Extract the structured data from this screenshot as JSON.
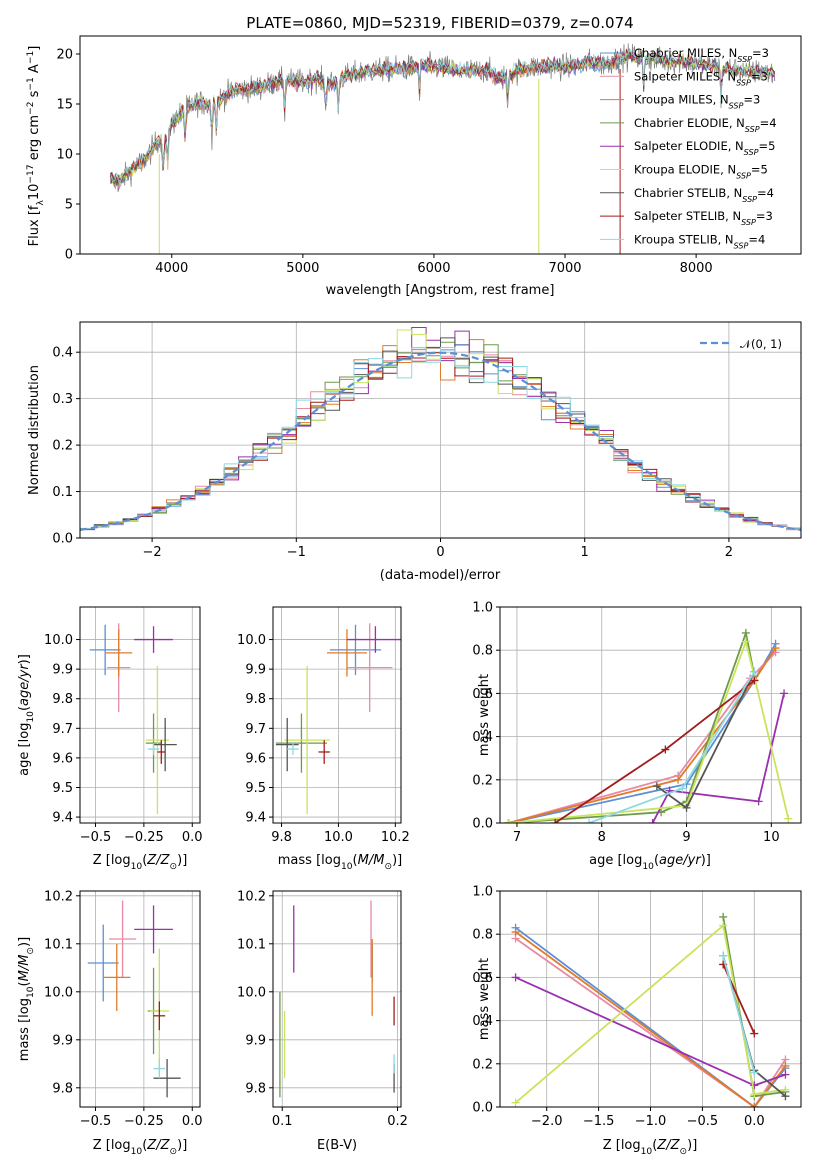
{
  "figure": {
    "title": "PLATE=0860, MJD=52319, FIBERID=0379, z=0.074"
  },
  "colors": {
    "Chabrier MILES": "#5b8fd6",
    "Salpeter MILES": "#e88aa3",
    "Kroupa MILES": "#e07b28",
    "Chabrier ELODIE": "#6f9a4c",
    "Salpeter ELODIE": "#9a2fb0",
    "Kroupa ELODIE": "#c7e45a",
    "Chabrier STELIB": "#555555",
    "Salpeter STELIB": "#a31c1c",
    "Kroupa STELIB": "#8ed8e2",
    "gauss": "#5b8fd6"
  },
  "chart_data": [
    {
      "id": "spectrum",
      "type": "line",
      "title": "PLATE=0860, MJD=52319, FIBERID=0379, z=0.074",
      "xlabel": "wavelength [Angstrom, rest frame]",
      "ylabel": "Flux [f_λ 10^-17 erg cm^-2 s^-1 A^-1]",
      "xlim": [
        3300,
        8800
      ],
      "ylim": [
        0,
        21.8
      ],
      "xticks": [
        4000,
        5000,
        6000,
        7000,
        8000
      ],
      "yticks": [
        0,
        5,
        10,
        15,
        20
      ],
      "grid": false,
      "legend_placement": "top-right",
      "continuum_points": [
        [
          3530,
          7.5
        ],
        [
          3600,
          7.2
        ],
        [
          3700,
          8.5
        ],
        [
          3800,
          9.5
        ],
        [
          3900,
          11.5
        ],
        [
          3950,
          11.0
        ],
        [
          4000,
          13.0
        ],
        [
          4100,
          14.5
        ],
        [
          4200,
          15.2
        ],
        [
          4300,
          14.8
        ],
        [
          4400,
          15.8
        ],
        [
          4500,
          16.5
        ],
        [
          4600,
          16.5
        ],
        [
          4700,
          16.8
        ],
        [
          4800,
          17.2
        ],
        [
          4900,
          17.3
        ],
        [
          5000,
          17.2
        ],
        [
          5100,
          17.5
        ],
        [
          5200,
          17.0
        ],
        [
          5300,
          17.6
        ],
        [
          5400,
          18.0
        ],
        [
          5500,
          18.3
        ],
        [
          5600,
          18.4
        ],
        [
          5700,
          18.5
        ],
        [
          5800,
          18.6
        ],
        [
          5900,
          18.9
        ],
        [
          6000,
          18.7
        ],
        [
          6100,
          18.6
        ],
        [
          6200,
          18.2
        ],
        [
          6300,
          18.3
        ],
        [
          6400,
          18.4
        ],
        [
          6500,
          17.5
        ],
        [
          6600,
          18.1
        ],
        [
          6700,
          18.6
        ],
        [
          6800,
          18.7
        ],
        [
          6900,
          18.8
        ],
        [
          7000,
          18.7
        ],
        [
          7100,
          18.9
        ],
        [
          7200,
          19.2
        ],
        [
          7300,
          19.0
        ],
        [
          7400,
          19.5
        ],
        [
          7500,
          19.8
        ],
        [
          7600,
          19.6
        ],
        [
          7700,
          19.4
        ],
        [
          7800,
          19.2
        ],
        [
          7900,
          19.3
        ],
        [
          8000,
          19.0
        ],
        [
          8100,
          18.8
        ],
        [
          8200,
          18.6
        ],
        [
          8300,
          18.4
        ],
        [
          8400,
          18.2
        ],
        [
          8500,
          18.2
        ],
        [
          8600,
          18.0
        ]
      ],
      "series": [
        {
          "name": "Chabrier MILES",
          "legend": [
            "Chabrier MILES, N",
            "SSP",
            "=3"
          ]
        },
        {
          "name": "Salpeter MILES",
          "legend": [
            "Salpeter MILES, N",
            "SSP",
            "=3"
          ]
        },
        {
          "name": "Kroupa MILES",
          "legend": [
            "Kroupa MILES, N",
            "SSP",
            "=3"
          ]
        },
        {
          "name": "Chabrier ELODIE",
          "legend": [
            "Chabrier ELODIE, N",
            "SSP",
            "=4"
          ]
        },
        {
          "name": "Salpeter ELODIE",
          "legend": [
            "Salpeter ELODIE, N",
            "SSP",
            "=5"
          ]
        },
        {
          "name": "Kroupa ELODIE",
          "legend": [
            "Kroupa ELODIE, N",
            "SSP",
            "=5"
          ]
        },
        {
          "name": "Chabrier STELIB",
          "legend": [
            "Chabrier STELIB, N",
            "SSP",
            "=4"
          ]
        },
        {
          "name": "Salpeter STELIB",
          "legend": [
            "Salpeter STELIB, N",
            "SSP",
            "=3"
          ]
        },
        {
          "name": "Kroupa STELIB",
          "legend": [
            "Kroupa STELIB, N",
            "SSP",
            "=4"
          ]
        }
      ]
    },
    {
      "id": "residuals",
      "type": "line",
      "xlabel": "(data-model)/error",
      "ylabel": "Normed distribution",
      "xlim": [
        -2.5,
        2.5
      ],
      "ylim": [
        0,
        0.465
      ],
      "xticks": [
        -2,
        -1,
        0,
        1,
        2
      ],
      "yticks": [
        0.0,
        0.1,
        0.2,
        0.3,
        0.4
      ],
      "grid": true,
      "legend_placement": "top-right",
      "gauss_label": "𝒩(0, 1)",
      "bin_width": 0.1,
      "bin_start": -2.5
    },
    {
      "id": "age-z",
      "type": "scatter",
      "xlabel": "Z [log10(Z/Z⊙)]",
      "ylabel": "age [log10(age/yr)]",
      "xlim": [
        -0.58,
        0.04
      ],
      "ylim": [
        9.38,
        10.11
      ],
      "xticks": [
        -0.5,
        -0.25,
        0.0
      ],
      "xticklabels": [
        "−0.5",
        "−0.25",
        "0.0"
      ],
      "yticks": [
        9.4,
        9.5,
        9.6,
        9.7,
        9.8,
        9.9,
        10.0
      ],
      "grid": true,
      "points": [
        {
          "name": "Chabrier MILES",
          "x": -0.45,
          "xerr": 0.08,
          "y": 9.965,
          "yerr": 0.085
        },
        {
          "name": "Salpeter MILES",
          "x": -0.38,
          "xerr": 0.06,
          "y": 9.905,
          "yerr": 0.15
        },
        {
          "name": "Kroupa MILES",
          "x": -0.38,
          "xerr": 0.07,
          "y": 9.955,
          "yerr": 0.08
        },
        {
          "name": "Chabrier ELODIE",
          "x": -0.2,
          "xerr": 0.04,
          "y": 9.65,
          "yerr": 0.1
        },
        {
          "name": "Salpeter ELODIE",
          "x": -0.2,
          "xerr": 0.1,
          "y": 10.0,
          "yerr": 0.045
        },
        {
          "name": "Kroupa ELODIE",
          "x": -0.18,
          "xerr": 0.06,
          "y": 9.66,
          "yerr": 0.25
        },
        {
          "name": "Chabrier STELIB",
          "x": -0.14,
          "xerr": 0.06,
          "y": 9.645,
          "yerr": 0.09
        },
        {
          "name": "Salpeter STELIB",
          "x": -0.16,
          "xerr": 0.02,
          "y": 9.62,
          "yerr": 0.04
        },
        {
          "name": "Kroupa STELIB",
          "x": -0.2,
          "xerr": 0.03,
          "y": 9.63,
          "yerr": 0.02
        }
      ]
    },
    {
      "id": "age-mass",
      "type": "scatter",
      "xlabel": "mass [log10(M/M⊙)]",
      "ylabel": "",
      "xlim": [
        9.77,
        10.22
      ],
      "ylim": [
        9.38,
        10.11
      ],
      "xticks": [
        9.8,
        10.0,
        10.2
      ],
      "yticks": [
        9.4,
        9.5,
        9.6,
        9.7,
        9.8,
        9.9,
        10.0
      ],
      "grid": true,
      "points": [
        {
          "name": "Chabrier MILES",
          "x": 10.06,
          "xerr": 0.09,
          "y": 9.965,
          "yerr": 0.085
        },
        {
          "name": "Salpeter MILES",
          "x": 10.11,
          "xerr": 0.08,
          "y": 9.905,
          "yerr": 0.15
        },
        {
          "name": "Kroupa MILES",
          "x": 10.03,
          "xerr": 0.07,
          "y": 9.955,
          "yerr": 0.08
        },
        {
          "name": "Chabrier ELODIE",
          "x": 9.87,
          "xerr": 0.09,
          "y": 9.65,
          "yerr": 0.1
        },
        {
          "name": "Salpeter ELODIE",
          "x": 10.13,
          "xerr": 0.1,
          "y": 10.0,
          "yerr": 0.045
        },
        {
          "name": "Kroupa ELODIE",
          "x": 9.89,
          "xerr": 0.08,
          "y": 9.66,
          "yerr": 0.25
        },
        {
          "name": "Chabrier STELIB",
          "x": 9.82,
          "xerr": 0.04,
          "y": 9.645,
          "yerr": 0.09
        },
        {
          "name": "Salpeter STELIB",
          "x": 9.95,
          "xerr": 0.02,
          "y": 9.62,
          "yerr": 0.04
        },
        {
          "name": "Kroupa STELIB",
          "x": 9.84,
          "xerr": 0.02,
          "y": 9.63,
          "yerr": 0.02
        }
      ]
    },
    {
      "id": "weight-age",
      "type": "line",
      "xlabel": "age [log10(age/yr)]",
      "ylabel": "mass weight",
      "xlim": [
        6.8,
        10.35
      ],
      "ylim": [
        0,
        1
      ],
      "xticks": [
        7,
        8,
        9,
        10
      ],
      "yticks": [
        0.0,
        0.2,
        0.4,
        0.6,
        0.8,
        1.0
      ],
      "grid": true,
      "series": [
        {
          "name": "Chabrier MILES",
          "x": [
            6.9,
            9.0,
            9.8,
            10.05
          ],
          "y": [
            0.0,
            0.18,
            0.66,
            0.83
          ]
        },
        {
          "name": "Salpeter MILES",
          "x": [
            6.9,
            8.9,
            9.75,
            10.05
          ],
          "y": [
            0.0,
            0.22,
            0.67,
            0.79
          ]
        },
        {
          "name": "Kroupa MILES",
          "x": [
            6.9,
            8.9,
            9.8,
            10.05
          ],
          "y": [
            0.0,
            0.2,
            0.66,
            0.81
          ]
        },
        {
          "name": "Chabrier ELODIE",
          "x": [
            6.9,
            8.7,
            9.0,
            9.7,
            9.8
          ],
          "y": [
            0.0,
            0.05,
            0.1,
            0.88,
            0.68
          ]
        },
        {
          "name": "Salpeter ELODIE",
          "x": [
            8.6,
            8.8,
            9.85,
            10.15
          ],
          "y": [
            0.0,
            0.15,
            0.1,
            0.6
          ]
        },
        {
          "name": "Kroupa ELODIE",
          "x": [
            6.9,
            9.0,
            9.7,
            10.2
          ],
          "y": [
            0.0,
            0.08,
            0.84,
            0.02
          ]
        },
        {
          "name": "Chabrier STELIB",
          "x": [
            8.65,
            9.0,
            9.8
          ],
          "y": [
            0.17,
            0.07,
            0.7
          ]
        },
        {
          "name": "Salpeter STELIB",
          "x": [
            7.45,
            8.75,
            9.8
          ],
          "y": [
            0.0,
            0.34,
            0.66
          ]
        },
        {
          "name": "Kroupa STELIB",
          "x": [
            7.85,
            8.95,
            9.8
          ],
          "y": [
            0.0,
            0.16,
            0.7
          ]
        }
      ]
    },
    {
      "id": "mass-z",
      "type": "scatter",
      "xlabel": "Z [log10(Z/Z⊙)]",
      "ylabel": "mass [log10(M/M⊙)]",
      "xlim": [
        -0.58,
        0.04
      ],
      "ylim": [
        9.76,
        10.21
      ],
      "xticks": [
        -0.5,
        -0.25,
        0.0
      ],
      "xticklabels": [
        "−0.5",
        "−0.25",
        "0.0"
      ],
      "yticks": [
        9.8,
        9.9,
        10.0,
        10.1,
        10.2
      ],
      "grid": true,
      "points": [
        {
          "name": "Chabrier MILES",
          "x": -0.46,
          "xerr": 0.08,
          "y": 10.06,
          "yerr": 0.08
        },
        {
          "name": "Salpeter MILES",
          "x": -0.36,
          "xerr": 0.07,
          "y": 10.11,
          "yerr": 0.08
        },
        {
          "name": "Kroupa MILES",
          "x": -0.39,
          "xerr": 0.07,
          "y": 10.03,
          "yerr": 0.07
        },
        {
          "name": "Chabrier ELODIE",
          "x": -0.2,
          "xerr": 0.03,
          "y": 9.96,
          "yerr": 0.09
        },
        {
          "name": "Salpeter ELODIE",
          "x": -0.2,
          "xerr": 0.1,
          "y": 10.13,
          "yerr": 0.05
        },
        {
          "name": "Kroupa ELODIE",
          "x": -0.17,
          "xerr": 0.05,
          "y": 9.96,
          "yerr": 0.13
        },
        {
          "name": "Chabrier STELIB",
          "x": -0.13,
          "xerr": 0.07,
          "y": 9.82,
          "yerr": 0.04
        },
        {
          "name": "Salpeter STELIB",
          "x": -0.17,
          "xerr": 0.03,
          "y": 9.95,
          "yerr": 0.03
        },
        {
          "name": "Kroupa STELIB",
          "x": -0.17,
          "xerr": 0.03,
          "y": 9.84,
          "yerr": 0.02
        }
      ]
    },
    {
      "id": "mass-ebv",
      "type": "scatter",
      "xlabel": "E(B-V)",
      "ylabel": "",
      "xlim": [
        0.092,
        0.203
      ],
      "ylim": [
        9.76,
        10.21
      ],
      "xticks": [
        0.1,
        0.2
      ],
      "yticks": [
        9.8,
        9.9,
        10.0,
        10.1,
        10.2
      ],
      "grid": true,
      "points": [
        {
          "name": "Chabrier MILES",
          "x": 0.178,
          "xerr": 0.0,
          "y": 10.06,
          "yerr": 0.04
        },
        {
          "name": "Salpeter MILES",
          "x": 0.177,
          "xerr": 0.0,
          "y": 10.11,
          "yerr": 0.08
        },
        {
          "name": "Kroupa MILES",
          "x": 0.178,
          "xerr": 0.0,
          "y": 10.03,
          "yerr": 0.08
        },
        {
          "name": "Chabrier ELODIE",
          "x": 0.098,
          "xerr": 0.0,
          "y": 9.89,
          "yerr": 0.11
        },
        {
          "name": "Salpeter ELODIE",
          "x": 0.11,
          "xerr": 0.0,
          "y": 10.11,
          "yerr": 0.07
        },
        {
          "name": "Kroupa ELODIE",
          "x": 0.102,
          "xerr": 0.0,
          "y": 9.89,
          "yerr": 0.07
        },
        {
          "name": "Chabrier STELIB",
          "x": 0.197,
          "xerr": 0.0,
          "y": 9.82,
          "yerr": 0.03
        },
        {
          "name": "Salpeter STELIB",
          "x": 0.197,
          "xerr": 0.0,
          "y": 9.96,
          "yerr": 0.03
        },
        {
          "name": "Kroupa STELIB",
          "x": 0.197,
          "xerr": 0.0,
          "y": 9.85,
          "yerr": 0.02
        }
      ]
    },
    {
      "id": "weight-z",
      "type": "line",
      "xlabel": "Z [log10(Z/Z⊙)]",
      "ylabel": "mass weight",
      "xlim": [
        -2.45,
        0.45
      ],
      "ylim": [
        0,
        1
      ],
      "xticks": [
        -2.0,
        -1.5,
        -1.0,
        -0.5,
        0.0
      ],
      "xticklabels": [
        "−2.0",
        "−1.5",
        "−1.0",
        "−0.5",
        "0.0"
      ],
      "yticks": [
        0.0,
        0.2,
        0.4,
        0.6,
        0.8,
        1.0
      ],
      "grid": true,
      "series": [
        {
          "name": "Chabrier MILES",
          "x": [
            -2.3,
            0.0,
            0.3
          ],
          "y": [
            0.83,
            0.0,
            0.18
          ]
        },
        {
          "name": "Salpeter MILES",
          "x": [
            -2.3,
            0.0,
            0.3
          ],
          "y": [
            0.78,
            0.0,
            0.22
          ]
        },
        {
          "name": "Kroupa MILES",
          "x": [
            -2.3,
            0.0,
            0.3
          ],
          "y": [
            0.81,
            0.0,
            0.19
          ]
        },
        {
          "name": "Chabrier ELODIE",
          "x": [
            -0.3,
            0.0,
            0.3
          ],
          "y": [
            0.88,
            0.05,
            0.07
          ]
        },
        {
          "name": "Salpeter ELODIE",
          "x": [
            -2.3,
            0.0,
            0.3
          ],
          "y": [
            0.6,
            0.1,
            0.15
          ]
        },
        {
          "name": "Kroupa ELODIE",
          "x": [
            -2.3,
            -0.3,
            0.0,
            0.3
          ],
          "y": [
            0.02,
            0.84,
            0.06,
            0.08
          ]
        },
        {
          "name": "Chabrier STELIB",
          "x": [
            -0.3,
            0.0,
            0.3
          ],
          "y": [
            0.7,
            0.17,
            0.05
          ]
        },
        {
          "name": "Salpeter STELIB",
          "x": [
            -0.3,
            0.0
          ],
          "y": [
            0.66,
            0.34
          ]
        },
        {
          "name": "Kroupa STELIB",
          "x": [
            -0.3,
            0.0
          ],
          "y": [
            0.7,
            0.16
          ]
        }
      ]
    }
  ]
}
